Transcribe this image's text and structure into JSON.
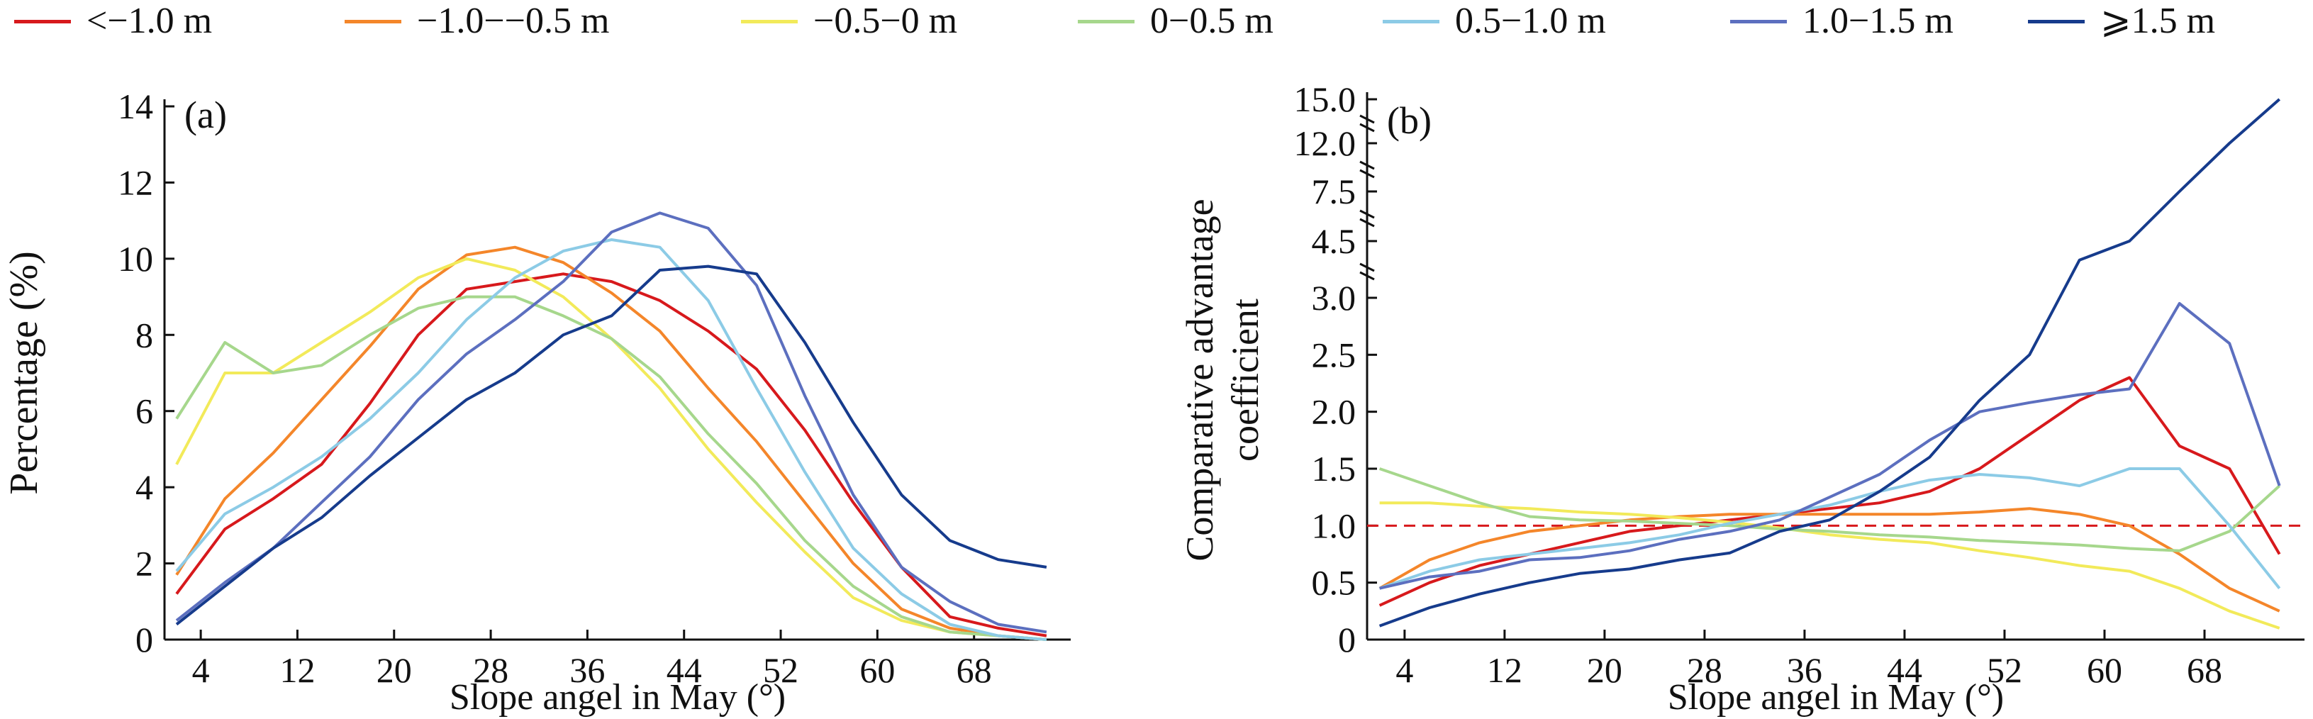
{
  "legend": [
    {
      "label": "<−1.0 m",
      "color": "#d7191c"
    },
    {
      "label": "−1.0−−0.5 m",
      "color": "#f4862a"
    },
    {
      "label": "−0.5−0 m",
      "color": "#f2ea5a"
    },
    {
      "label": "0−0.5 m",
      "color": "#a6d78c"
    },
    {
      "label": "0.5−1.0 m",
      "color": "#8ccbe6"
    },
    {
      "label": "1.0−1.5 m",
      "color": "#5c6fbf"
    },
    {
      "label": "⩾1.5 m",
      "color": "#163b8c"
    }
  ],
  "chart_data": [
    {
      "type": "line",
      "panel_label": "(a)",
      "xlabel": "Slope angel in May (°)",
      "ylabel": "Percentage (%)",
      "xlim": [
        1,
        76
      ],
      "ylim": [
        0,
        14
      ],
      "xticks": [
        4,
        12,
        20,
        28,
        36,
        44,
        52,
        60,
        68
      ],
      "yticks": [
        0,
        2,
        4,
        6,
        8,
        10,
        12,
        14
      ],
      "x": [
        2,
        6,
        10,
        14,
        18,
        22,
        26,
        30,
        34,
        38,
        42,
        46,
        50,
        54,
        58,
        62,
        66,
        70,
        74
      ],
      "series": [
        {
          "name": "<−1.0 m",
          "values": [
            1.2,
            2.9,
            3.7,
            4.6,
            6.2,
            8.0,
            9.2,
            9.4,
            9.6,
            9.4,
            8.9,
            8.1,
            7.1,
            5.5,
            3.6,
            1.9,
            0.6,
            0.3,
            0.1
          ]
        },
        {
          "name": "−1.0−−0.5 m",
          "values": [
            1.7,
            3.7,
            4.9,
            6.3,
            7.7,
            9.2,
            10.1,
            10.3,
            9.9,
            9.1,
            8.1,
            6.6,
            5.2,
            3.6,
            2.0,
            0.8,
            0.3,
            0.1,
            0.0
          ]
        },
        {
          "name": "−0.5−0 m",
          "values": [
            4.6,
            7.0,
            7.0,
            7.8,
            8.6,
            9.5,
            10.0,
            9.7,
            9.0,
            7.9,
            6.6,
            5.0,
            3.6,
            2.3,
            1.1,
            0.5,
            0.2,
            0.1,
            0.0
          ]
        },
        {
          "name": "0−0.5 m",
          "values": [
            5.8,
            7.8,
            7.0,
            7.2,
            8.0,
            8.7,
            9.0,
            9.0,
            8.5,
            7.9,
            6.9,
            5.4,
            4.1,
            2.6,
            1.4,
            0.6,
            0.2,
            0.1,
            0.0
          ]
        },
        {
          "name": "0.5−1.0 m",
          "values": [
            1.8,
            3.3,
            4.0,
            4.8,
            5.8,
            7.0,
            8.4,
            9.5,
            10.2,
            10.5,
            10.3,
            8.9,
            6.6,
            4.4,
            2.4,
            1.2,
            0.4,
            0.1,
            0.0
          ]
        },
        {
          "name": "1.0−1.5 m",
          "values": [
            0.5,
            1.5,
            2.4,
            3.6,
            4.8,
            6.3,
            7.5,
            8.4,
            9.4,
            10.7,
            11.2,
            10.8,
            9.3,
            6.4,
            3.8,
            1.9,
            1.0,
            0.4,
            0.2
          ]
        },
        {
          "name": "⩾1.5 m",
          "values": [
            0.4,
            1.4,
            2.4,
            3.2,
            4.3,
            5.3,
            6.3,
            7.0,
            8.0,
            8.5,
            9.7,
            9.8,
            9.6,
            7.8,
            5.7,
            3.8,
            2.6,
            2.1,
            1.9
          ]
        }
      ]
    },
    {
      "type": "line",
      "panel_label": "(b)",
      "xlabel": "Slope angel in May (°)",
      "ylabel": "Comparative advantage coefficient",
      "xlim": [
        1,
        76
      ],
      "ylim": [
        0,
        15
      ],
      "axis_breaks": [
        [
          3.0,
          4.5
        ],
        [
          4.5,
          7.5
        ],
        [
          7.5,
          12.0
        ],
        [
          12.0,
          15.0
        ]
      ],
      "xticks": [
        4,
        12,
        20,
        28,
        36,
        44,
        52,
        60,
        68
      ],
      "yticks": [
        "0",
        "0.5",
        "1.0",
        "1.5",
        "2.0",
        "2.5",
        "3.0",
        "4.5",
        "7.5",
        "12.0",
        "15.0"
      ],
      "reference_line": {
        "y": 1.0,
        "color": "#d7191c",
        "style": "dashed"
      },
      "x": [
        2,
        6,
        10,
        14,
        18,
        22,
        26,
        30,
        34,
        38,
        42,
        46,
        50,
        54,
        58,
        62,
        66,
        70,
        74
      ],
      "series": [
        {
          "name": "<−1.0 m",
          "values": [
            0.3,
            0.5,
            0.65,
            0.75,
            0.85,
            0.95,
            1.0,
            1.05,
            1.1,
            1.15,
            1.2,
            1.3,
            1.5,
            1.8,
            2.1,
            2.3,
            1.7,
            1.5,
            0.75
          ]
        },
        {
          "name": "−1.0−−0.5 m",
          "values": [
            0.45,
            0.7,
            0.85,
            0.95,
            1.0,
            1.05,
            1.08,
            1.1,
            1.1,
            1.1,
            1.1,
            1.1,
            1.12,
            1.15,
            1.1,
            1.0,
            0.75,
            0.45,
            0.25
          ]
        },
        {
          "name": "−0.5−0 m",
          "values": [
            1.2,
            1.2,
            1.17,
            1.15,
            1.12,
            1.1,
            1.07,
            1.03,
            0.98,
            0.92,
            0.88,
            0.85,
            0.78,
            0.72,
            0.65,
            0.6,
            0.45,
            0.25,
            0.1
          ]
        },
        {
          "name": "0−0.5 m",
          "values": [
            1.5,
            1.35,
            1.2,
            1.08,
            1.05,
            1.04,
            1.02,
            1.0,
            0.97,
            0.95,
            0.92,
            0.9,
            0.87,
            0.85,
            0.83,
            0.8,
            0.78,
            0.95,
            1.35
          ]
        },
        {
          "name": "0.5−1.0 m",
          "values": [
            0.45,
            0.6,
            0.7,
            0.75,
            0.8,
            0.85,
            0.92,
            1.02,
            1.1,
            1.18,
            1.3,
            1.4,
            1.45,
            1.42,
            1.35,
            1.5,
            1.5,
            1.0,
            0.45
          ]
        },
        {
          "name": "1.0−1.5 m",
          "values": [
            0.45,
            0.55,
            0.6,
            0.7,
            0.72,
            0.78,
            0.88,
            0.95,
            1.05,
            1.25,
            1.45,
            1.75,
            2.0,
            2.08,
            2.15,
            2.2,
            2.95,
            2.6,
            1.35
          ]
        },
        {
          "name": "⩾1.5 m",
          "values": [
            0.12,
            0.28,
            0.4,
            0.5,
            0.58,
            0.62,
            0.7,
            0.76,
            0.95,
            1.05,
            1.3,
            1.6,
            2.1,
            2.5,
            4.0,
            4.5,
            7.5,
            12.0,
            15.0
          ]
        }
      ]
    }
  ]
}
